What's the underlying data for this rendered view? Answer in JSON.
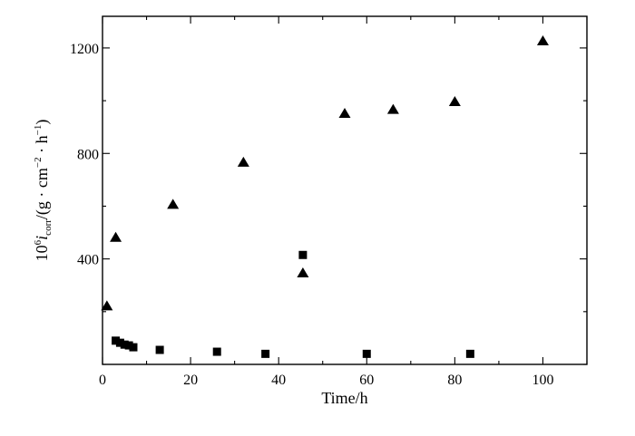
{
  "chart_data": {
    "type": "scatter",
    "xlabel": "Time/h",
    "ylabel": {
      "base": "10",
      "exp": "6",
      "symbol": "i",
      "subscript": "corr",
      "unit_open": "/(g · cm",
      "exp1": "−2",
      "unit_mid": " · h",
      "exp2": "−1",
      "unit_close": ")"
    },
    "xlim": [
      0,
      110
    ],
    "ylim": [
      0,
      1320
    ],
    "x_ticks": [
      0,
      20,
      40,
      60,
      80,
      100
    ],
    "y_ticks": [
      400,
      800,
      1200
    ],
    "grid": false,
    "series": [
      {
        "marker": "square",
        "color": "#000000",
        "points": [
          [
            3,
            90
          ],
          [
            4,
            82
          ],
          [
            5,
            75
          ],
          [
            6,
            72
          ],
          [
            7,
            65
          ],
          [
            13,
            55
          ],
          [
            26,
            48
          ],
          [
            37,
            40
          ],
          [
            45.5,
            415
          ],
          [
            60,
            40
          ],
          [
            83.5,
            40
          ]
        ]
      },
      {
        "marker": "triangle",
        "color": "#000000",
        "points": [
          [
            1,
            220
          ],
          [
            3,
            480
          ],
          [
            16,
            605
          ],
          [
            32,
            765
          ],
          [
            45.5,
            345
          ],
          [
            55,
            950
          ],
          [
            66,
            965
          ],
          [
            80,
            995
          ],
          [
            100,
            1225
          ]
        ]
      }
    ]
  }
}
